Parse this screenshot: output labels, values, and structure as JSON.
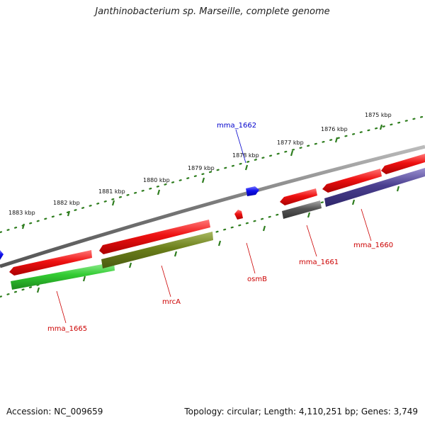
{
  "title": "Janthinobacterium sp. Marseille, complete genome",
  "footer": {
    "accession": "Accession: NC_009659",
    "summary": "Topology: circular; Length: 4,110,251 bp; Genes: 3,749"
  },
  "scale": {
    "unit": "kbp",
    "labels": [
      "1883 kbp",
      "1882 kbp",
      "1881 kbp",
      "1880 kbp",
      "1879 kbp",
      "1878 kbp",
      "1877 kbp",
      "1876 kbp",
      "1875 kbp"
    ]
  },
  "genes": [
    {
      "name": "mma_1662",
      "color": "#0000cc"
    },
    {
      "name": "mma_1660",
      "color": "#cc0000"
    },
    {
      "name": "mma_1661",
      "color": "#cc0000"
    },
    {
      "name": "osmB",
      "color": "#cc0000"
    },
    {
      "name": "mrcA",
      "color": "#cc0000"
    },
    {
      "name": "mma_1665",
      "color": "#cc0000"
    }
  ],
  "colors": {
    "cds_red": "#ee1111",
    "cds_blue": "#1111ee",
    "cog_green": "#33cc33",
    "cog_olive": "#6b7f1a",
    "cog_gray": "#555555",
    "cog_purple": "#4a3f8f",
    "backbone": "#777777",
    "tick_green": "#2e7d1e"
  }
}
